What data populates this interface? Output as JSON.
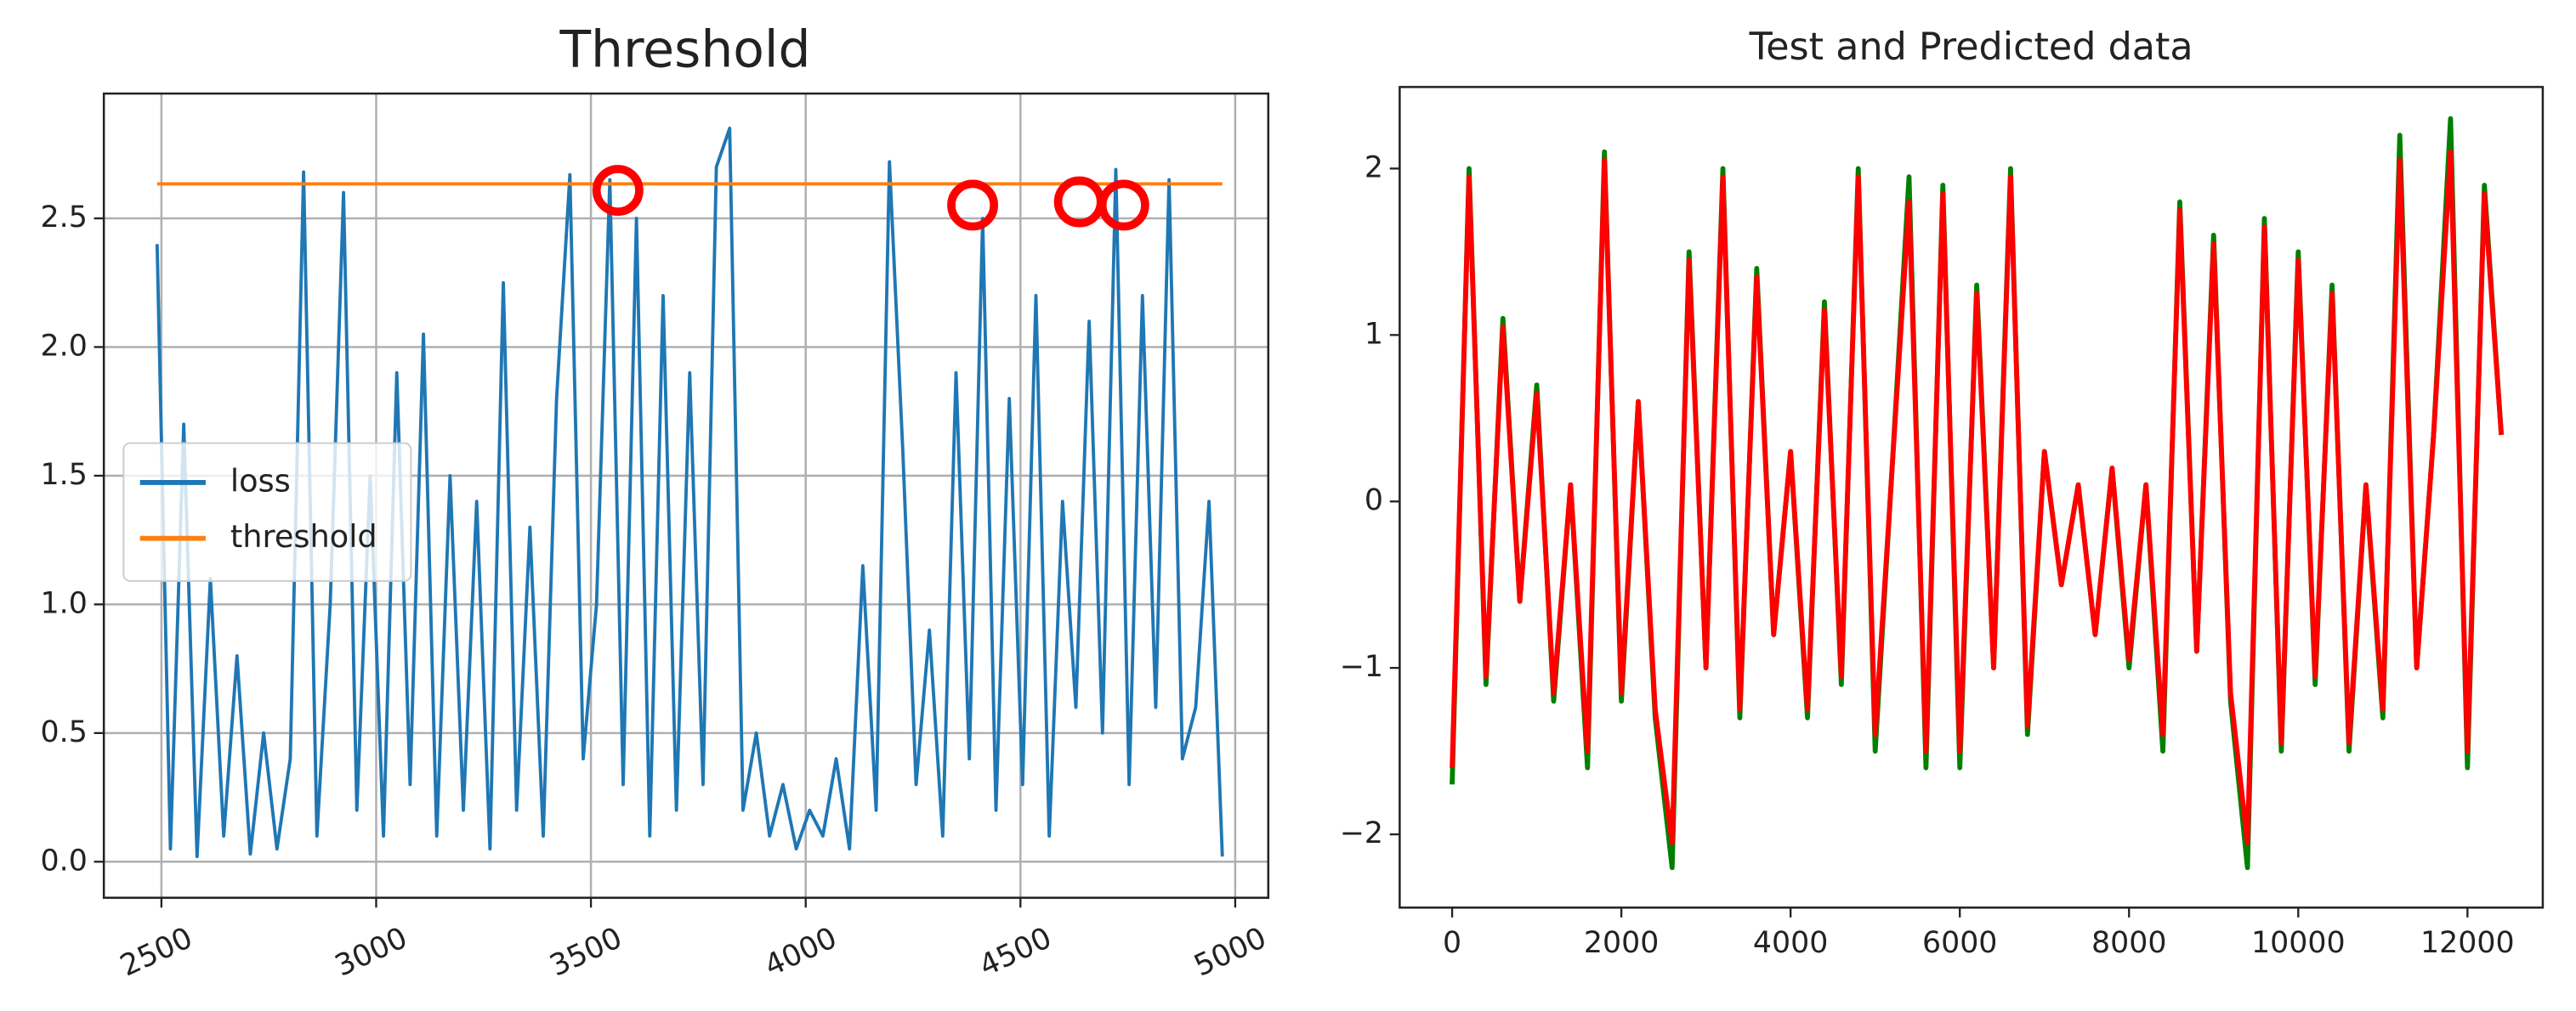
{
  "chart_data": [
    {
      "type": "line",
      "title": "Threshold",
      "xlim": [
        2366,
        5077
      ],
      "xticks": [
        2500,
        3000,
        3500,
        4000,
        4500,
        5000
      ],
      "ylim": [
        -0.14,
        2.985
      ],
      "yticks": [
        {
          "value": 0,
          "label": "0.0"
        },
        0.5,
        {
          "value": 1,
          "label": "1.0"
        },
        1.5,
        {
          "value": 2,
          "label": "2.0"
        },
        2.5
      ],
      "grid": true,
      "legend": "center left",
      "series": [
        {
          "name": "loss",
          "color": "#1f77b4",
          "x": [
            2490,
            2521,
            2552,
            2583,
            2614,
            2645,
            2676,
            2707,
            2738,
            2769,
            2800,
            2831,
            2862,
            2893,
            2924,
            2955,
            2986,
            3017,
            3048,
            3079,
            3110,
            3141,
            3172,
            3203,
            3234,
            3265,
            3296,
            3327,
            3358,
            3389,
            3420,
            3451,
            3482,
            3513,
            3544,
            3575,
            3606,
            3637,
            3668,
            3699,
            3730,
            3761,
            3792,
            3823,
            3854,
            3885,
            3916,
            3947,
            3978,
            4009,
            4040,
            4071,
            4102,
            4133,
            4164,
            4195,
            4226,
            4257,
            4288,
            4319,
            4350,
            4381,
            4412,
            4443,
            4474,
            4505,
            4536,
            4567,
            4598,
            4629,
            4660,
            4691,
            4722,
            4753,
            4784,
            4815,
            4846,
            4877,
            4908,
            4939,
            4970
          ],
          "values": [
            2.4,
            0.05,
            1.7,
            0.02,
            1.1,
            0.1,
            0.8,
            0.03,
            0.5,
            0.05,
            0.4,
            2.68,
            0.1,
            1.0,
            2.6,
            0.2,
            1.5,
            0.1,
            1.9,
            0.3,
            2.05,
            0.1,
            1.5,
            0.2,
            1.4,
            0.05,
            2.25,
            0.2,
            1.3,
            0.1,
            1.8,
            2.67,
            0.4,
            1.0,
            2.65,
            0.3,
            2.5,
            0.1,
            2.2,
            0.2,
            1.9,
            0.3,
            2.7,
            2.85,
            0.2,
            0.5,
            0.1,
            0.3,
            0.05,
            0.2,
            0.1,
            0.4,
            0.05,
            1.15,
            0.2,
            2.72,
            1.6,
            0.3,
            0.9,
            0.1,
            1.9,
            0.4,
            2.5,
            0.2,
            1.8,
            0.3,
            2.2,
            0.1,
            1.4,
            0.6,
            2.1,
            0.5,
            2.69,
            0.3,
            2.2,
            0.6,
            2.65,
            0.4,
            0.6,
            1.4,
            0.02
          ]
        },
        {
          "name": "threshold",
          "color": "#ff7f0e",
          "x": [
            2490,
            4970
          ],
          "values": [
            2.634,
            2.634
          ]
        }
      ]
    },
    {
      "type": "line",
      "title": "Test and Predicted data",
      "xlim": [
        -620,
        12890
      ],
      "xticks": [
        0,
        2000,
        4000,
        6000,
        8000,
        10000,
        12000
      ],
      "ylim": [
        -2.44,
        2.49
      ],
      "yticks": [
        {
          "value": -2,
          "label": "−2"
        },
        {
          "value": -1,
          "label": "−1"
        },
        0,
        1,
        2
      ],
      "grid": false,
      "x": [
        0,
        200,
        400,
        600,
        800,
        1000,
        1200,
        1400,
        1600,
        1800,
        2000,
        2200,
        2400,
        2600,
        2800,
        3000,
        3200,
        3400,
        3600,
        3800,
        4000,
        4200,
        4400,
        4600,
        4800,
        5000,
        5200,
        5400,
        5600,
        5800,
        6000,
        6200,
        6400,
        6600,
        6800,
        7000,
        7200,
        7400,
        7600,
        7800,
        8000,
        8200,
        8400,
        8600,
        8800,
        9000,
        9200,
        9400,
        9600,
        9800,
        10000,
        10200,
        10400,
        10600,
        10800,
        11000,
        11200,
        11400,
        11600,
        11800,
        12000,
        12200,
        12400
      ],
      "series": [
        {
          "color": "#008000",
          "values": [
            -1.7,
            2.0,
            -1.1,
            1.1,
            -0.6,
            0.7,
            -1.2,
            0.1,
            -1.6,
            2.1,
            -1.2,
            0.6,
            -1.3,
            -2.2,
            1.5,
            -1.0,
            2.0,
            -1.3,
            1.4,
            -0.8,
            0.3,
            -1.3,
            1.2,
            -1.1,
            2.0,
            -1.5,
            0.2,
            1.95,
            -1.6,
            1.9,
            -1.6,
            1.3,
            -1.0,
            2.0,
            -1.4,
            0.3,
            -0.5,
            0.1,
            -0.8,
            0.2,
            -1.0,
            0.1,
            -1.5,
            1.8,
            -0.9,
            1.6,
            -1.2,
            -2.2,
            1.7,
            -1.5,
            1.5,
            -1.1,
            1.3,
            -1.5,
            0.1,
            -1.3,
            2.2,
            -1.0,
            0.4,
            2.3,
            -1.6,
            1.9,
            0.4
          ]
        },
        {
          "color": "#ff0000",
          "values": [
            -1.6,
            1.95,
            -1.05,
            1.05,
            -0.6,
            0.65,
            -1.15,
            0.1,
            -1.5,
            2.05,
            -1.15,
            0.6,
            -1.25,
            -2.05,
            1.45,
            -1.0,
            1.95,
            -1.25,
            1.35,
            -0.8,
            0.3,
            -1.25,
            1.15,
            -1.05,
            1.95,
            -1.4,
            0.2,
            1.8,
            -1.5,
            1.85,
            -1.5,
            1.25,
            -1.0,
            1.95,
            -1.35,
            0.3,
            -0.5,
            0.1,
            -0.8,
            0.2,
            -0.95,
            0.1,
            -1.4,
            1.75,
            -0.9,
            1.55,
            -1.15,
            -2.05,
            1.65,
            -1.45,
            1.45,
            -1.05,
            1.25,
            -1.45,
            0.1,
            -1.25,
            2.05,
            -1.0,
            0.4,
            2.1,
            -1.5,
            1.85,
            0.4
          ]
        }
      ]
    }
  ]
}
